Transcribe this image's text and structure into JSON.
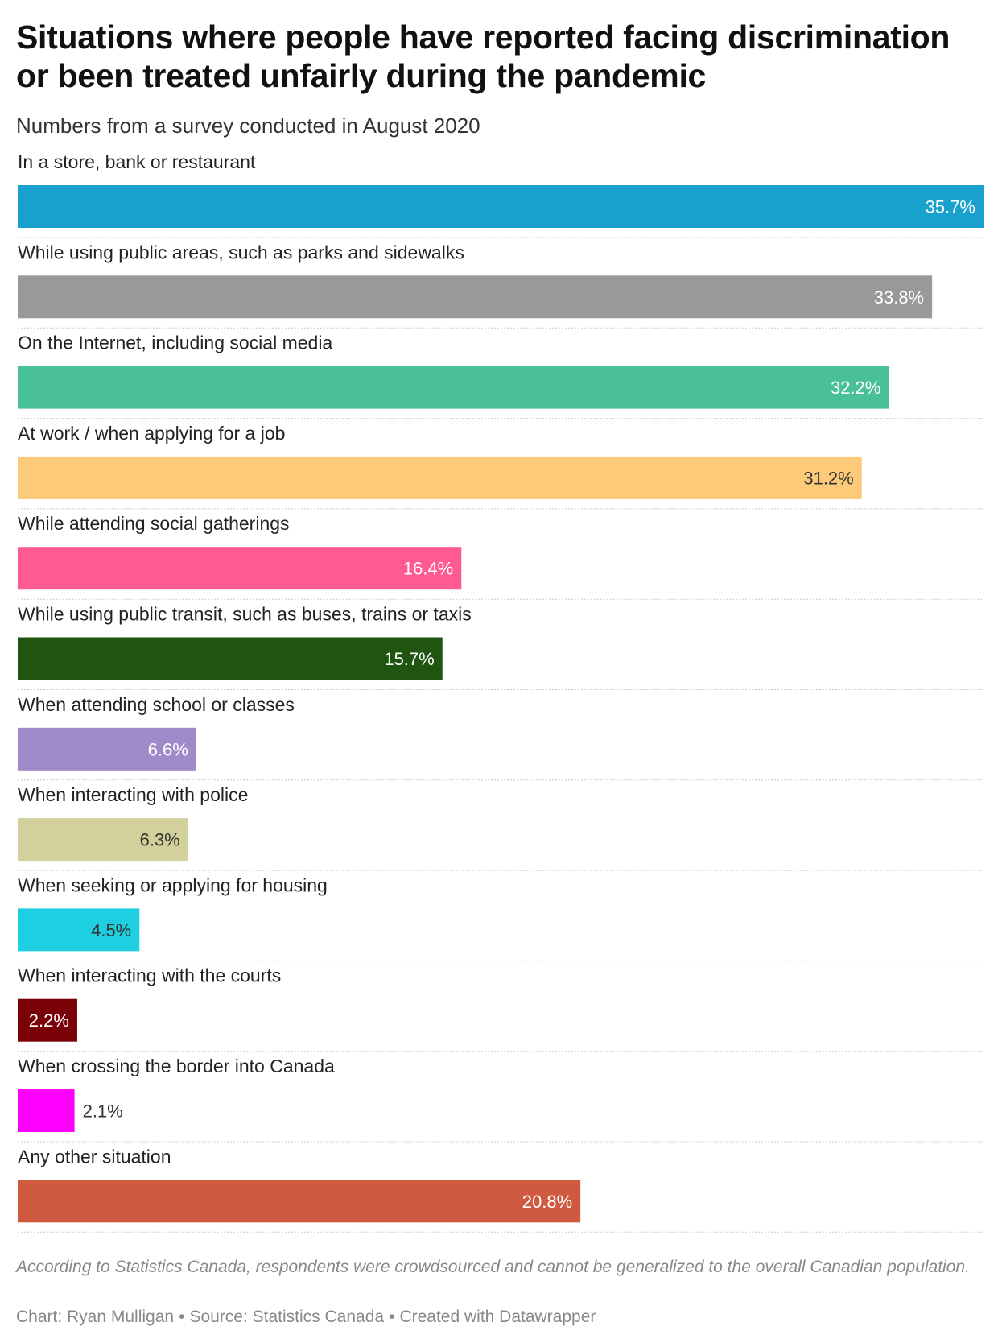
{
  "title": "Situations where people have reported facing discrimination or been treated unfairly during the pandemic",
  "subtitle": "Numbers from a survey conducted in August 2020",
  "chart_data": {
    "type": "bar",
    "orientation": "horizontal",
    "title": "Situations where people have reported facing discrimination or been treated unfairly during the pandemic",
    "subtitle": "Numbers from a survey conducted in August 2020",
    "value_suffix": "%",
    "xlim": [
      0,
      35.7
    ],
    "grid": false,
    "categories": [
      "In a store, bank or restaurant",
      "While using public areas, such as parks and sidewalks",
      "On the Internet, including social media",
      "At work / when applying for a job",
      "While attending social gatherings",
      "While using public transit, such as buses, trains or taxis",
      "When attending school or classes",
      "When interacting with police",
      "When seeking or applying for housing",
      "When interacting with the courts",
      "When crossing the border into Canada",
      "Any other situation"
    ],
    "values": [
      35.7,
      33.8,
      32.2,
      31.2,
      16.4,
      15.7,
      6.6,
      6.3,
      4.5,
      2.2,
      2.1,
      20.8
    ],
    "labels": [
      "35.7%",
      "33.8%",
      "32.2%",
      "31.2%",
      "16.4%",
      "15.7%",
      "6.6%",
      "6.3%",
      "4.5%",
      "2.2%",
      "2.1%",
      "20.8%"
    ],
    "colors": [
      "#18a1cd",
      "#999999",
      "#4ac09a",
      "#fdca7a",
      "#ff5a92",
      "#1f5510",
      "#a08bca",
      "#d3d19b",
      "#1dcfe0",
      "#7a0008",
      "#ff00ff",
      "#d05a40"
    ],
    "label_colors": [
      "#ffffff",
      "#ffffff",
      "#ffffff",
      "#333333",
      "#ffffff",
      "#ffffff",
      "#ffffff",
      "#333333",
      "#333333",
      "#ffffff",
      "#333333",
      "#ffffff"
    ]
  },
  "note": "According to Statistics Canada, respondents were crowdsourced and cannot be generalized to the overall Canadian population.",
  "footer": {
    "chart_credit": "Chart: Ryan Mulligan",
    "source": "Source: Statistics Canada",
    "tool": "Created with Datawrapper",
    "separator": "•"
  }
}
